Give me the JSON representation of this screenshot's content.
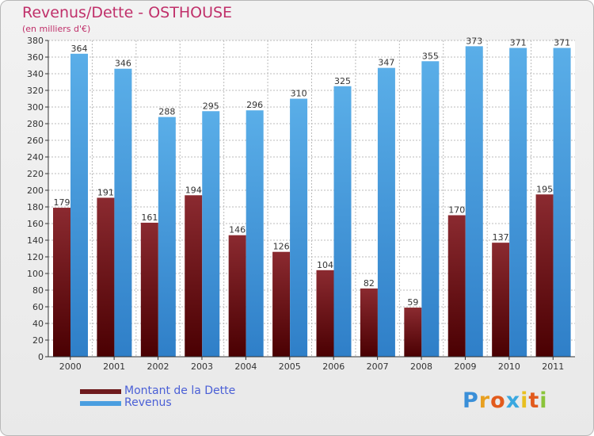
{
  "title": "Revenus/Dette - OSTHOUSE",
  "subtitle": "(en milliers d'€)",
  "colors": {
    "title": "#c0306a",
    "dette": "#6e1a1d",
    "revenus": "#4a9ee0",
    "legend_text": "#4a5fd6",
    "axis": "#333333"
  },
  "chart_data": {
    "type": "bar",
    "categories": [
      "2000",
      "2001",
      "2002",
      "2003",
      "2004",
      "2005",
      "2006",
      "2007",
      "2008",
      "2009",
      "2010",
      "2011"
    ],
    "series": [
      {
        "name": "Montant de la Dette",
        "values": [
          179,
          191,
          161,
          194,
          146,
          126,
          104,
          82,
          59,
          170,
          137,
          195
        ]
      },
      {
        "name": "Revenus",
        "values": [
          364,
          346,
          288,
          295,
          296,
          310,
          325,
          347,
          355,
          373,
          371,
          371
        ]
      }
    ],
    "ylim": [
      0,
      380
    ],
    "y_tick_step": 20,
    "grid": true,
    "legend_position": "bottom-left"
  },
  "legend": {
    "items": [
      {
        "label": "Montant de la Dette",
        "color": "#6e1a1d"
      },
      {
        "label": "Revenus",
        "color": "#4a9ee0"
      }
    ]
  },
  "logo": {
    "letters": [
      "P",
      "r",
      "o",
      "x",
      "i",
      "t",
      "i"
    ],
    "colors": [
      "#3a8fd8",
      "#e8a020",
      "#e25a1c",
      "#3aa8e0",
      "#e8c020",
      "#e25a1c",
      "#8ac43a"
    ]
  }
}
